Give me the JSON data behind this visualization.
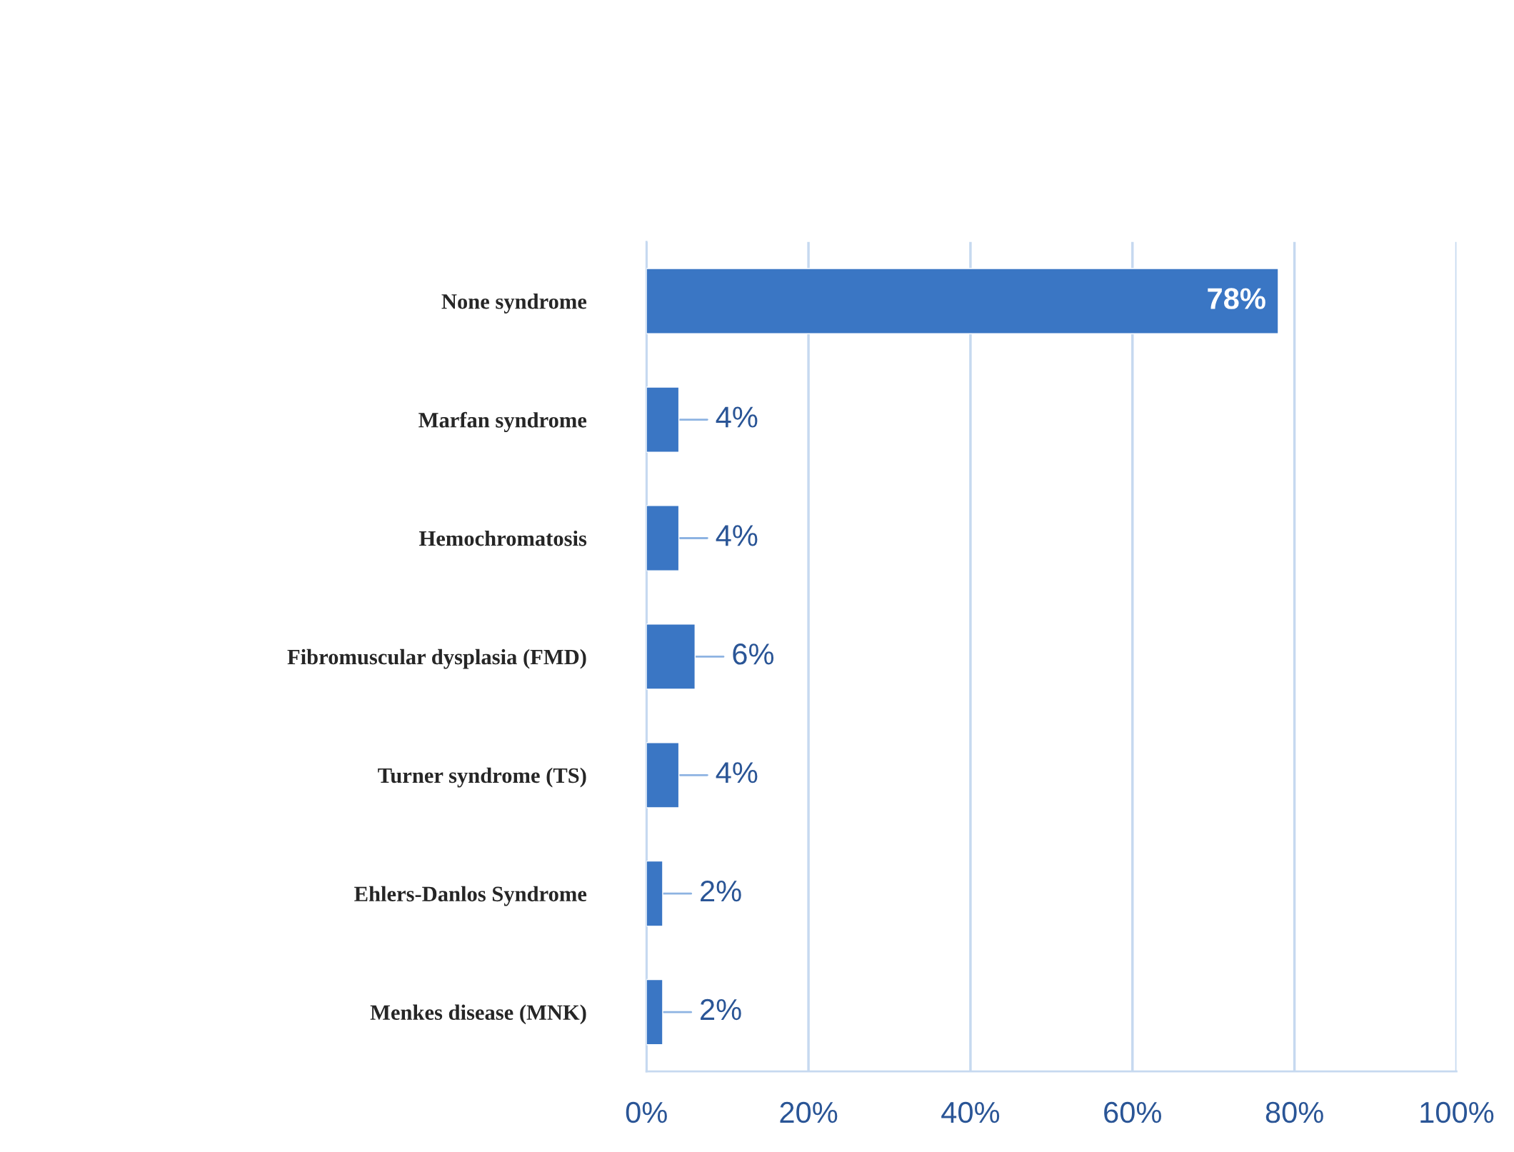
{
  "chart_data": {
    "type": "bar",
    "orientation": "horizontal",
    "categories": [
      "None syndrome",
      "Marfan syndrome",
      "Hemochromatosis",
      "Fibromuscular dysplasia (FMD)",
      "Turner syndrome (TS)",
      "Ehlers-Danlos Syndrome",
      "Menkes disease (MNK)"
    ],
    "values": [
      78,
      4,
      4,
      6,
      4,
      2,
      2
    ],
    "value_labels": [
      "78%",
      "4%",
      "4%",
      "6%",
      "4%",
      "2%",
      "2%"
    ],
    "color": "#3a76c4",
    "xlim": [
      0,
      100
    ],
    "xticks": [
      {
        "value": 0,
        "label": "0%"
      },
      {
        "value": 20,
        "label": "20%"
      },
      {
        "value": 40,
        "label": "40%"
      },
      {
        "value": 60,
        "label": "60%"
      },
      {
        "value": 80,
        "label": "80%"
      },
      {
        "value": 100,
        "label": "100%"
      }
    ],
    "grid": "x",
    "legend": false
  }
}
